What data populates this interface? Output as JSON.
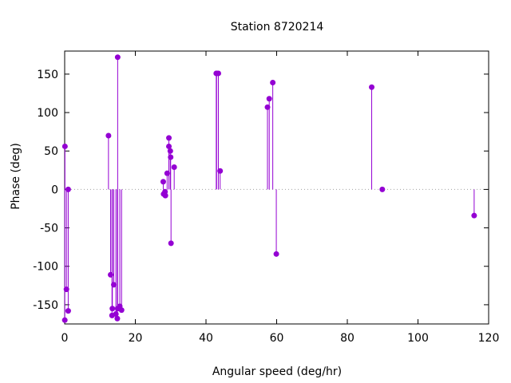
{
  "chart_data": {
    "type": "scatter",
    "style": "impulses-with-points",
    "title": "Station 8720214",
    "xlabel": "Angular speed (deg/hr)",
    "ylabel": "Phase (deg)",
    "xlim": [
      0,
      120
    ],
    "ylim": [
      -175,
      180
    ],
    "xticks": [
      0,
      20,
      40,
      60,
      80,
      100,
      120
    ],
    "yticks": [
      -150,
      -100,
      -50,
      0,
      50,
      100,
      150
    ],
    "xtick_labels": [
      "0",
      "20",
      "40",
      "60",
      "80",
      "100",
      "120"
    ],
    "ytick_labels": [
      "-150",
      "-100",
      "-50",
      "0",
      "50",
      "100",
      "150"
    ],
    "zero_line": "dotted",
    "grid": false,
    "legend": "none",
    "colors": {
      "series": "#9400d3",
      "axis": "#000000",
      "zero_line": "#a0a0a0"
    },
    "series": [
      {
        "x": [
          0.04,
          0.08,
          0.5,
          1.0,
          1.0,
          12.4,
          13.0,
          13.4,
          13.5,
          13.9,
          14.5,
          14.9,
          15.0,
          15.0,
          15.6,
          16.1,
          27.9,
          28.0,
          28.4,
          28.5,
          29.0,
          29.5,
          29.5,
          29.9,
          30.0,
          30.1,
          31.0,
          42.9,
          43.0,
          43.5,
          44.0,
          57.4,
          57.9,
          58.9,
          59.9,
          86.9,
          89.9,
          115.9
        ],
        "y": [
          -170,
          56,
          -130,
          -158,
          0,
          70,
          -111,
          -164,
          -155,
          -124,
          -162,
          -168,
          172,
          -155,
          -152,
          -157,
          10,
          -6,
          -3,
          -8,
          21,
          67,
          56,
          50,
          42,
          -70,
          29,
          151,
          151,
          151,
          24,
          107,
          118,
          139,
          -84,
          133,
          0,
          -34
        ]
      }
    ]
  }
}
